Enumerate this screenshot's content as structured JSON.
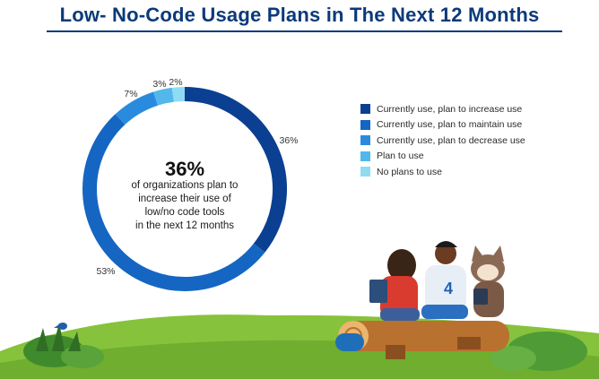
{
  "chart_data": {
    "type": "pie",
    "title": "Low- No-Code Usage Plans in The Next 12 Months",
    "categories": [
      "Currently use, plan to increase use",
      "Currently use, plan to maintain use",
      "Currently use, plan to decrease use",
      "Plan to use",
      "No plans to use"
    ],
    "values": [
      36,
      53,
      7,
      3,
      2
    ],
    "data_labels": [
      "36%",
      "53%",
      "7%",
      "3%",
      "2%"
    ],
    "colors": [
      "#0b3f91",
      "#1566c2",
      "#2a8bde",
      "#52b8eb",
      "#8fdcf2"
    ],
    "legend_position": "right",
    "center_value": "36%",
    "center_lines": [
      "of organizations plan to",
      "increase their use of",
      "low/no code tools",
      "in the next 12 months"
    ]
  }
}
